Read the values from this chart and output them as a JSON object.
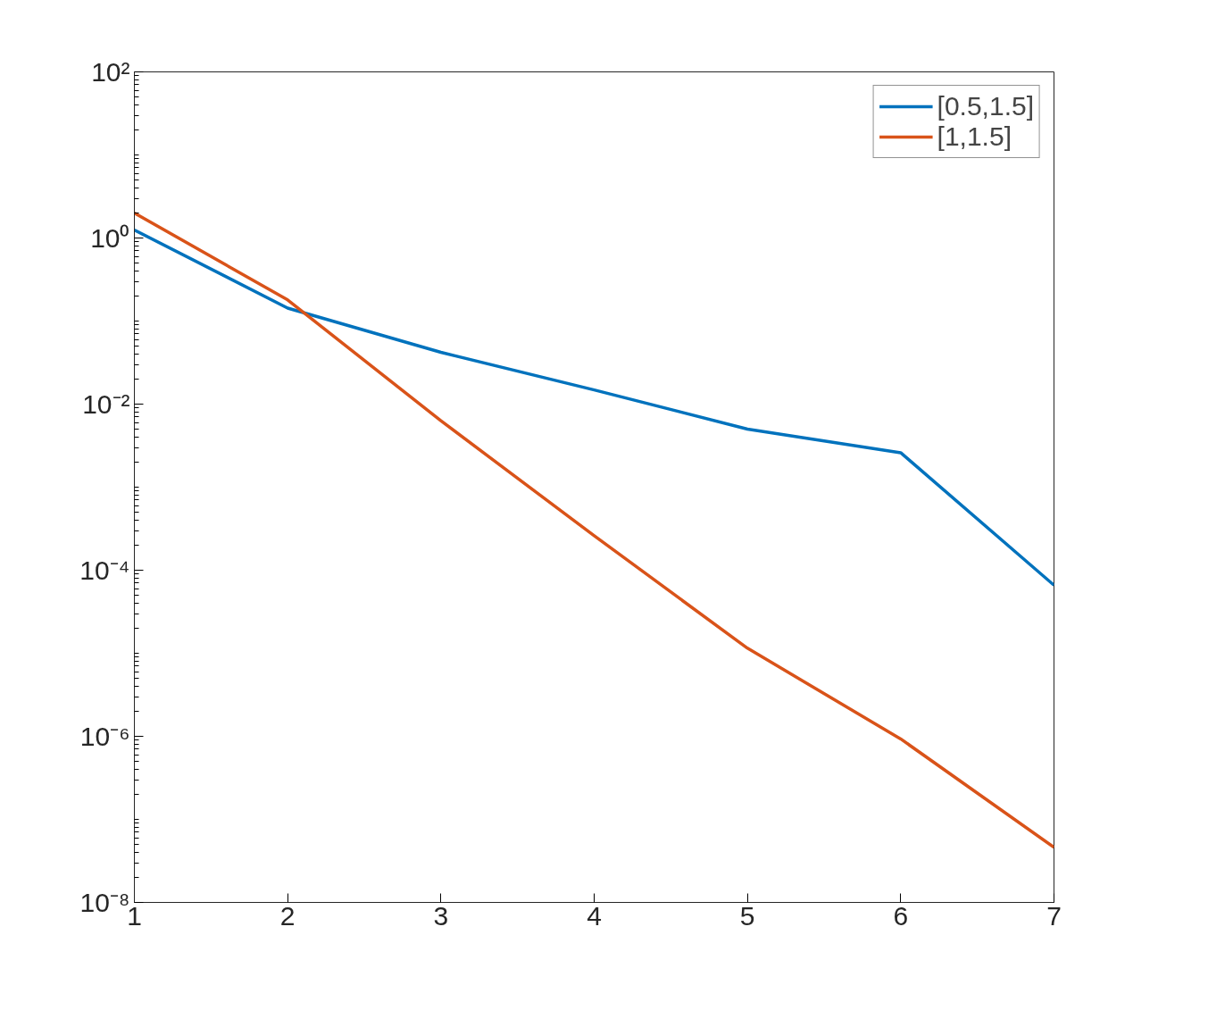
{
  "chart_data": {
    "type": "line",
    "x": [
      1,
      2,
      3,
      4,
      5,
      6,
      7
    ],
    "series": [
      {
        "name": "[0.5,1.5]",
        "color": "#0072bd",
        "values": [
          1.25,
          0.143,
          0.042,
          0.0148,
          0.005,
          0.0026,
          6.6e-05
        ]
      },
      {
        "name": "[1,1.5]",
        "color": "#d95319",
        "values": [
          2.0,
          0.18,
          0.0063,
          0.00026,
          1.15e-05,
          9.3e-07,
          4.6e-08
        ]
      }
    ],
    "xlim": [
      1,
      7
    ],
    "xticks": [
      1,
      2,
      3,
      4,
      5,
      6,
      7
    ],
    "ylim": [
      1e-08,
      100
    ],
    "yticks": [
      {
        "value": 1e-08,
        "label": "10⁻⁸"
      },
      {
        "value": 1e-06,
        "label": "10⁻⁶"
      },
      {
        "value": 0.0001,
        "label": "10⁻⁴"
      },
      {
        "value": 0.01,
        "label": "10⁻²"
      },
      {
        "value": 1,
        "label": "10⁰"
      },
      {
        "value": 100,
        "label": "10²"
      }
    ],
    "log": "y",
    "grid": false,
    "legend": "top right",
    "line_style": "solid",
    "marker": "none"
  }
}
